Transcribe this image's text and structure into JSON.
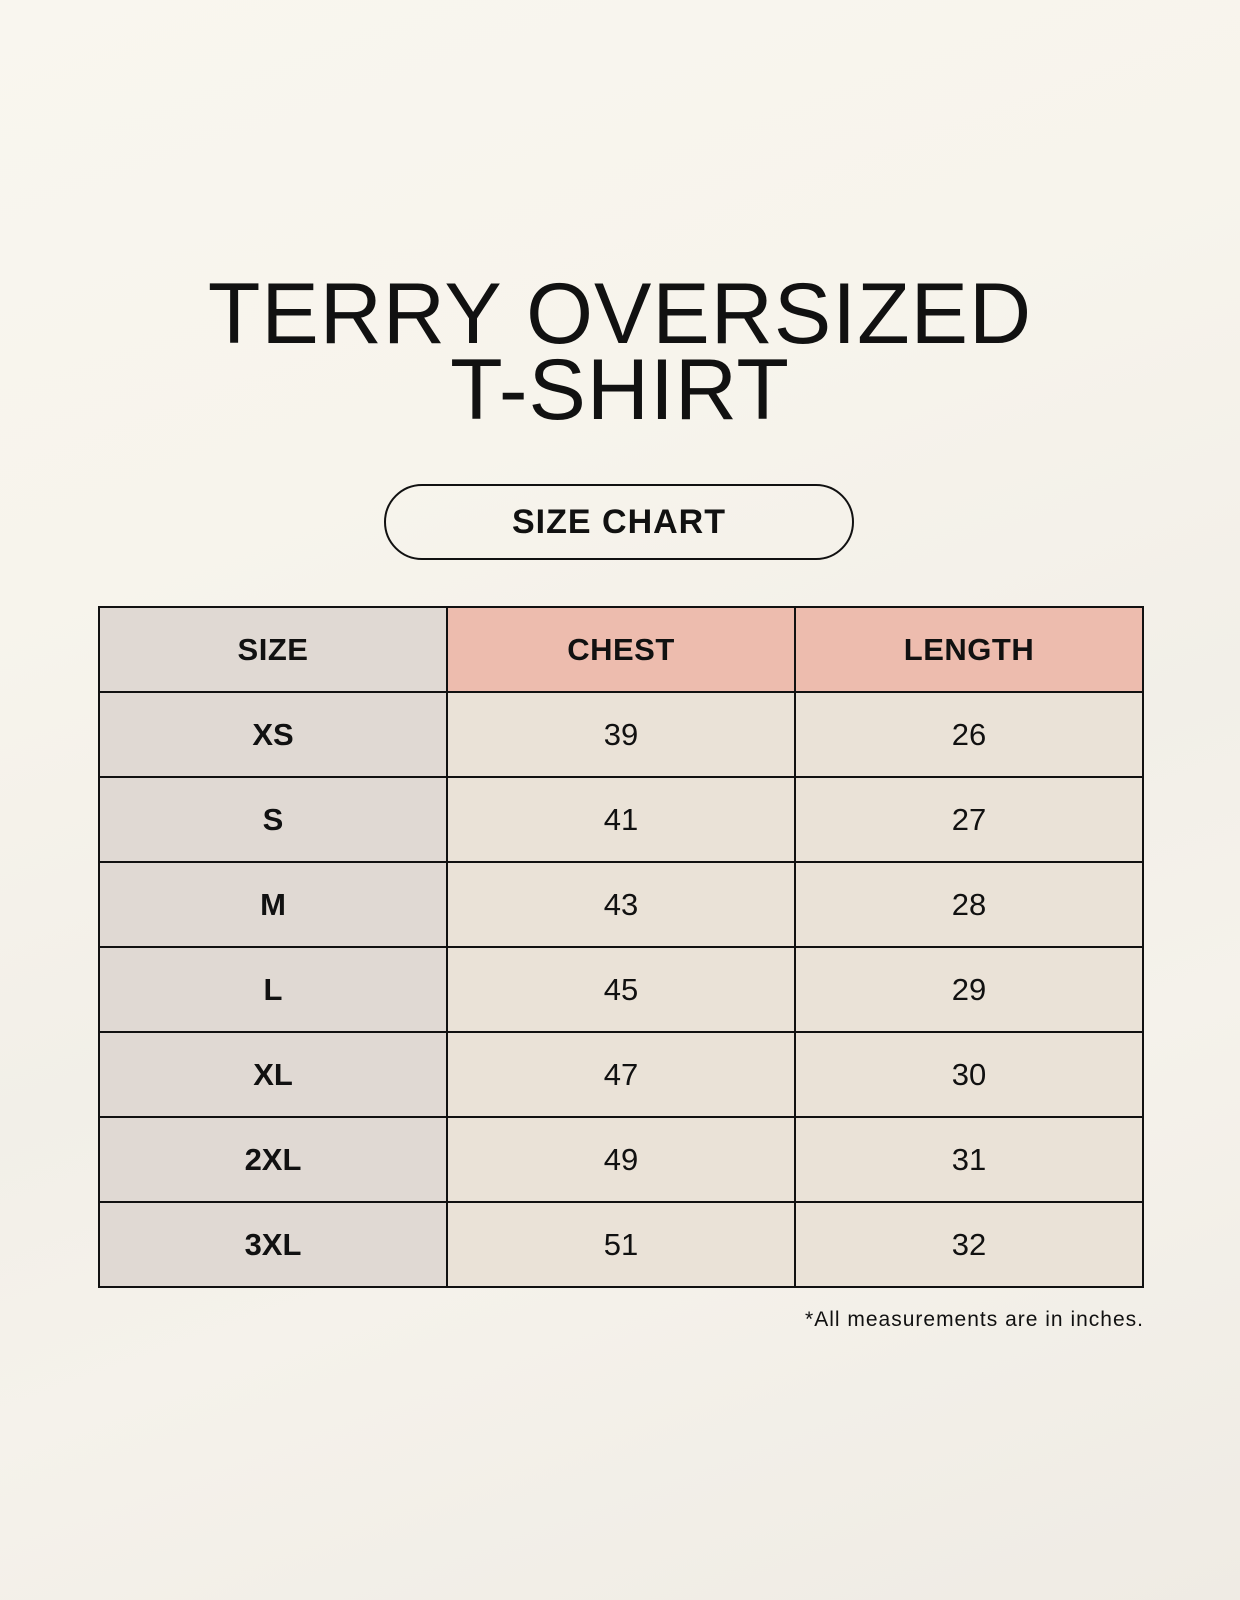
{
  "title": {
    "line1": "TERRY OVERSIZED",
    "line2": "T-SHIRT"
  },
  "badge": "SIZE CHART",
  "table": {
    "headers": [
      "SIZE",
      "CHEST",
      "LENGTH"
    ],
    "rows": [
      [
        "XS",
        "39",
        "26"
      ],
      [
        "S",
        "41",
        "27"
      ],
      [
        "M",
        "43",
        "28"
      ],
      [
        "L",
        "45",
        "29"
      ],
      [
        "XL",
        "47",
        "30"
      ],
      [
        "2XL",
        "49",
        "31"
      ],
      [
        "3XL",
        "51",
        "32"
      ]
    ]
  },
  "note": "*All measurements are in inches.",
  "colors": {
    "size_column": "#e0d9d3",
    "measure_header": "#edbcae",
    "value_cell": "#eae2d7"
  }
}
